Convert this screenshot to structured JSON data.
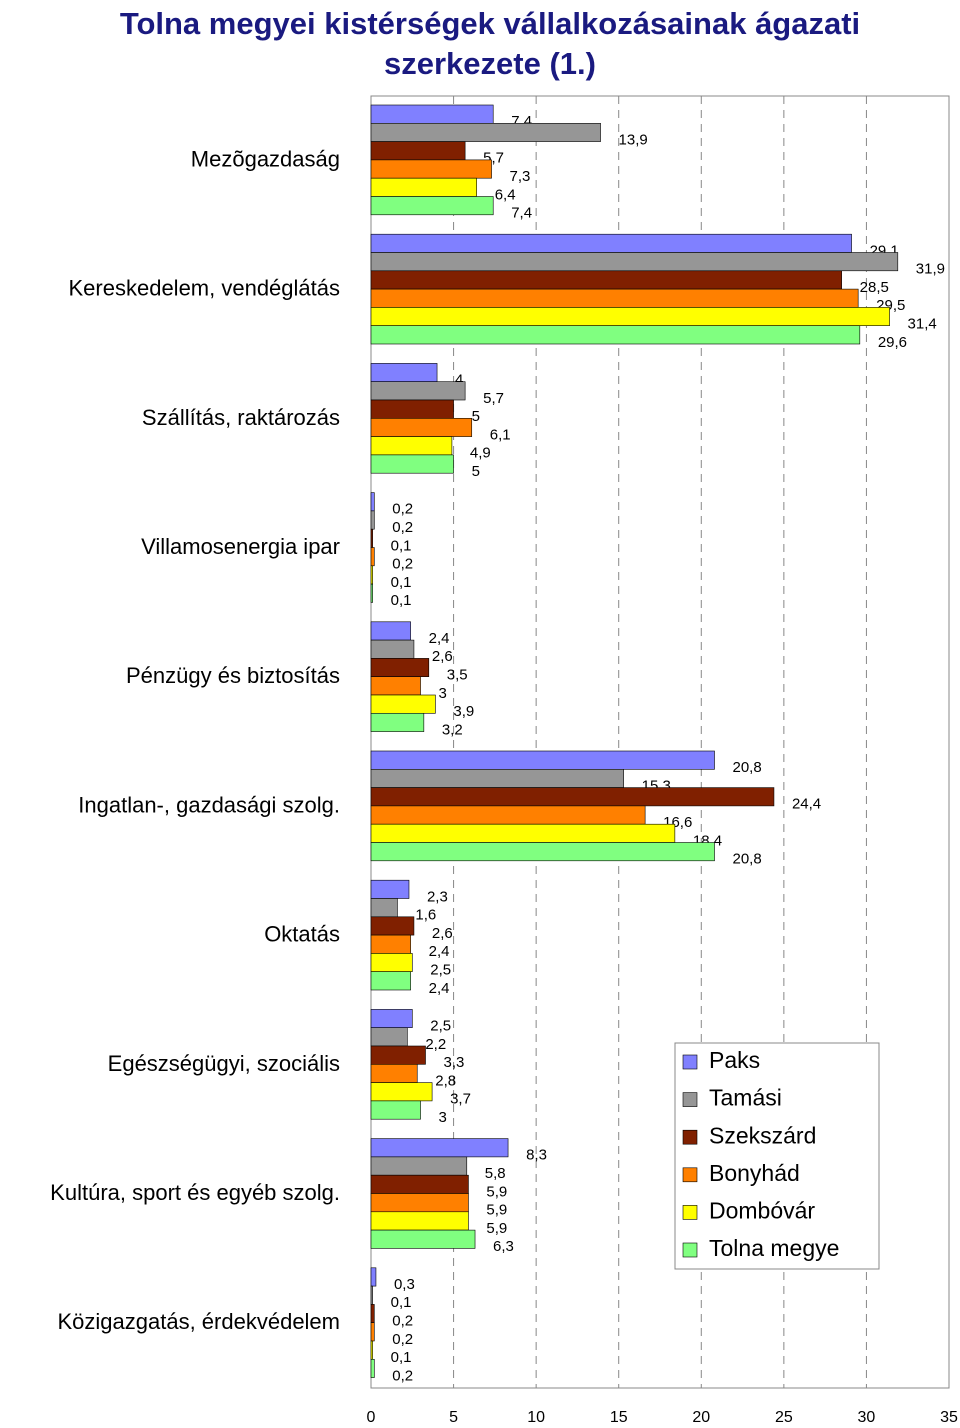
{
  "chart_data": {
    "type": "bar",
    "orientation": "horizontal",
    "title": "Tolna megyei kistérségek vállalkozásainak ágazati szerkezete (1.)",
    "categories": [
      "Mezõgazdaság",
      "Kereskedelem, vendéglátás",
      "Szállítás, raktározás",
      "Villamosenergia ipar",
      "Pénzügy és biztosítás",
      "Ingatlan-, gazdasági szolg.",
      "Oktatás",
      "Egészségügyi, szociális",
      "Kultúra, sport és egyéb szolg.",
      "Közigazgatás, érdekvédelem"
    ],
    "series": [
      {
        "name": "Paks",
        "color": "#8080ff",
        "values": [
          7.4,
          29.1,
          4,
          0.2,
          2.4,
          20.8,
          2.3,
          2.5,
          8.3,
          0.3
        ],
        "value_labels": [
          "7,4",
          "29,1",
          "4",
          "0,2",
          "2,4",
          "20,8",
          "2,3",
          "2,5",
          "8,3",
          "0,3"
        ]
      },
      {
        "name": "Tamási",
        "color": "#969696",
        "values": [
          13.9,
          31.9,
          5.7,
          0.2,
          2.6,
          15.3,
          1.6,
          2.2,
          5.8,
          0.1
        ],
        "value_labels": [
          "13,9",
          "31,9",
          "5,7",
          "0,2",
          "2,6",
          "15,3",
          "1,6",
          "2,2",
          "5,8",
          "0,1"
        ]
      },
      {
        "name": "Szekszárd",
        "color": "#802000",
        "values": [
          5.7,
          28.5,
          5,
          0.1,
          3.5,
          24.4,
          2.6,
          3.3,
          5.9,
          0.2
        ],
        "value_labels": [
          "5,7",
          "28,5",
          "5",
          "0,1",
          "3,5",
          "24,4",
          "2,6",
          "3,3",
          "5,9",
          "0,2"
        ]
      },
      {
        "name": "Bonyhád",
        "color": "#ff8000",
        "values": [
          7.3,
          29.5,
          6.1,
          0.2,
          3,
          16.6,
          2.4,
          2.8,
          5.9,
          0.2
        ],
        "value_labels": [
          "7,3",
          "29,5",
          "6,1",
          "0,2",
          "3",
          "16,6",
          "2,4",
          "2,8",
          "5,9",
          "0,2"
        ]
      },
      {
        "name": "Dombóvár",
        "color": "#ffff00",
        "values": [
          6.4,
          31.4,
          4.9,
          0.1,
          3.9,
          18.4,
          2.5,
          3.7,
          5.9,
          0.1
        ],
        "value_labels": [
          "6,4",
          "31,4",
          "4,9",
          "0,1",
          "3,9",
          "18,4",
          "2,5",
          "3,7",
          "5,9",
          "0,1"
        ]
      },
      {
        "name": "Tolna megye",
        "color": "#80ff80",
        "values": [
          7.4,
          29.6,
          5,
          0.1,
          3.2,
          20.8,
          2.4,
          3,
          6.3,
          0.2
        ],
        "value_labels": [
          "7,4",
          "29,6",
          "5",
          "0,1",
          "3,2",
          "20,8",
          "2,4",
          "3",
          "6,3",
          "0,2"
        ]
      }
    ],
    "xlim": [
      0,
      35
    ],
    "xticks": [
      0,
      5,
      10,
      15,
      20,
      25,
      30,
      35
    ],
    "grid": true,
    "legend": "lower right"
  }
}
